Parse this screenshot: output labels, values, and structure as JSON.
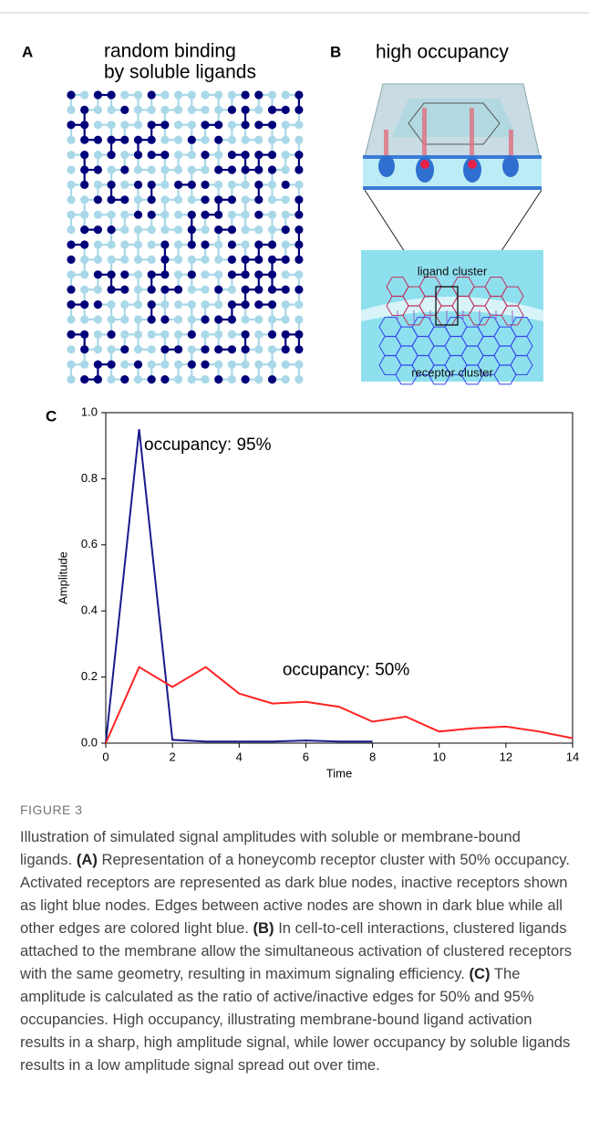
{
  "panel_a": {
    "label": "A",
    "title": [
      "random binding",
      "by soluble ligands"
    ]
  },
  "panel_b": {
    "label": "B",
    "title": "high occupancy",
    "ligand_label": "ligand cluster",
    "receptor_label": "receptor cluster"
  },
  "chart_data": {
    "type": "line",
    "panel_label": "C",
    "xlabel": "Time",
    "ylabel": "Amplitude",
    "xlim": [
      0,
      14
    ],
    "xticks": [
      0,
      2,
      4,
      6,
      8,
      10,
      12,
      14
    ],
    "ylim": [
      0,
      1
    ],
    "yticks": [
      {
        "value": 0,
        "label": "0.0"
      },
      0.2,
      0.4,
      0.6,
      0.8,
      {
        "value": 1,
        "label": "1.0"
      }
    ],
    "series": [
      {
        "color": "#1a1a8c",
        "x": [
          0,
          1,
          2,
          3,
          4,
          5,
          6,
          7,
          8
        ],
        "values": [
          0,
          0.95,
          0.01,
          0.005,
          0.005,
          0.005,
          0.008,
          0.005,
          0.005
        ]
      },
      {
        "color": "#ff2222",
        "x": [
          0,
          1,
          2,
          3,
          4,
          5,
          6,
          7,
          8,
          9,
          10,
          11,
          12,
          13,
          14
        ],
        "values": [
          0,
          0.23,
          0.17,
          0.23,
          0.15,
          0.12,
          0.125,
          0.11,
          0.065,
          0.08,
          0.035,
          0.045,
          0.05,
          0.035,
          0.015
        ]
      }
    ],
    "annotations": [
      {
        "text": "occupancy: 95%",
        "x": 1.15,
        "y": 0.9
      },
      {
        "text": "occupancy: 50%",
        "x": 5.3,
        "y": 0.22
      }
    ]
  },
  "figure_label": "FIGURE 3",
  "caption": [
    {
      "text": "Illustration of simulated signal amplitudes with soluble or membrane-bound ligands. "
    },
    {
      "text": "(A)",
      "bold": true
    },
    {
      "text": " Representation of a honeycomb receptor cluster with 50% occupancy. Activated receptors are represented as dark blue nodes, inactive receptors shown as light blue nodes. Edges between active nodes are shown in dark blue while all other edges are colored light blue. "
    },
    {
      "text": "(B)",
      "bold": true
    },
    {
      "text": " In cell-to-cell interactions, clustered ligands attached to the membrane allow the simultaneous activation of clustered receptors with the same geometry, resulting in maximum signaling efficiency. "
    },
    {
      "text": "(C)",
      "bold": true
    },
    {
      "text": " The amplitude is calculated as the ratio of active/inactive edges for 50% and 95% occupancies. High occupancy, illustrating membrane-bound ligand activation results in a sharp, high amplitude signal, while lower occupancy by soluble ligands results in a low amplitude signal spread out over time."
    }
  ]
}
